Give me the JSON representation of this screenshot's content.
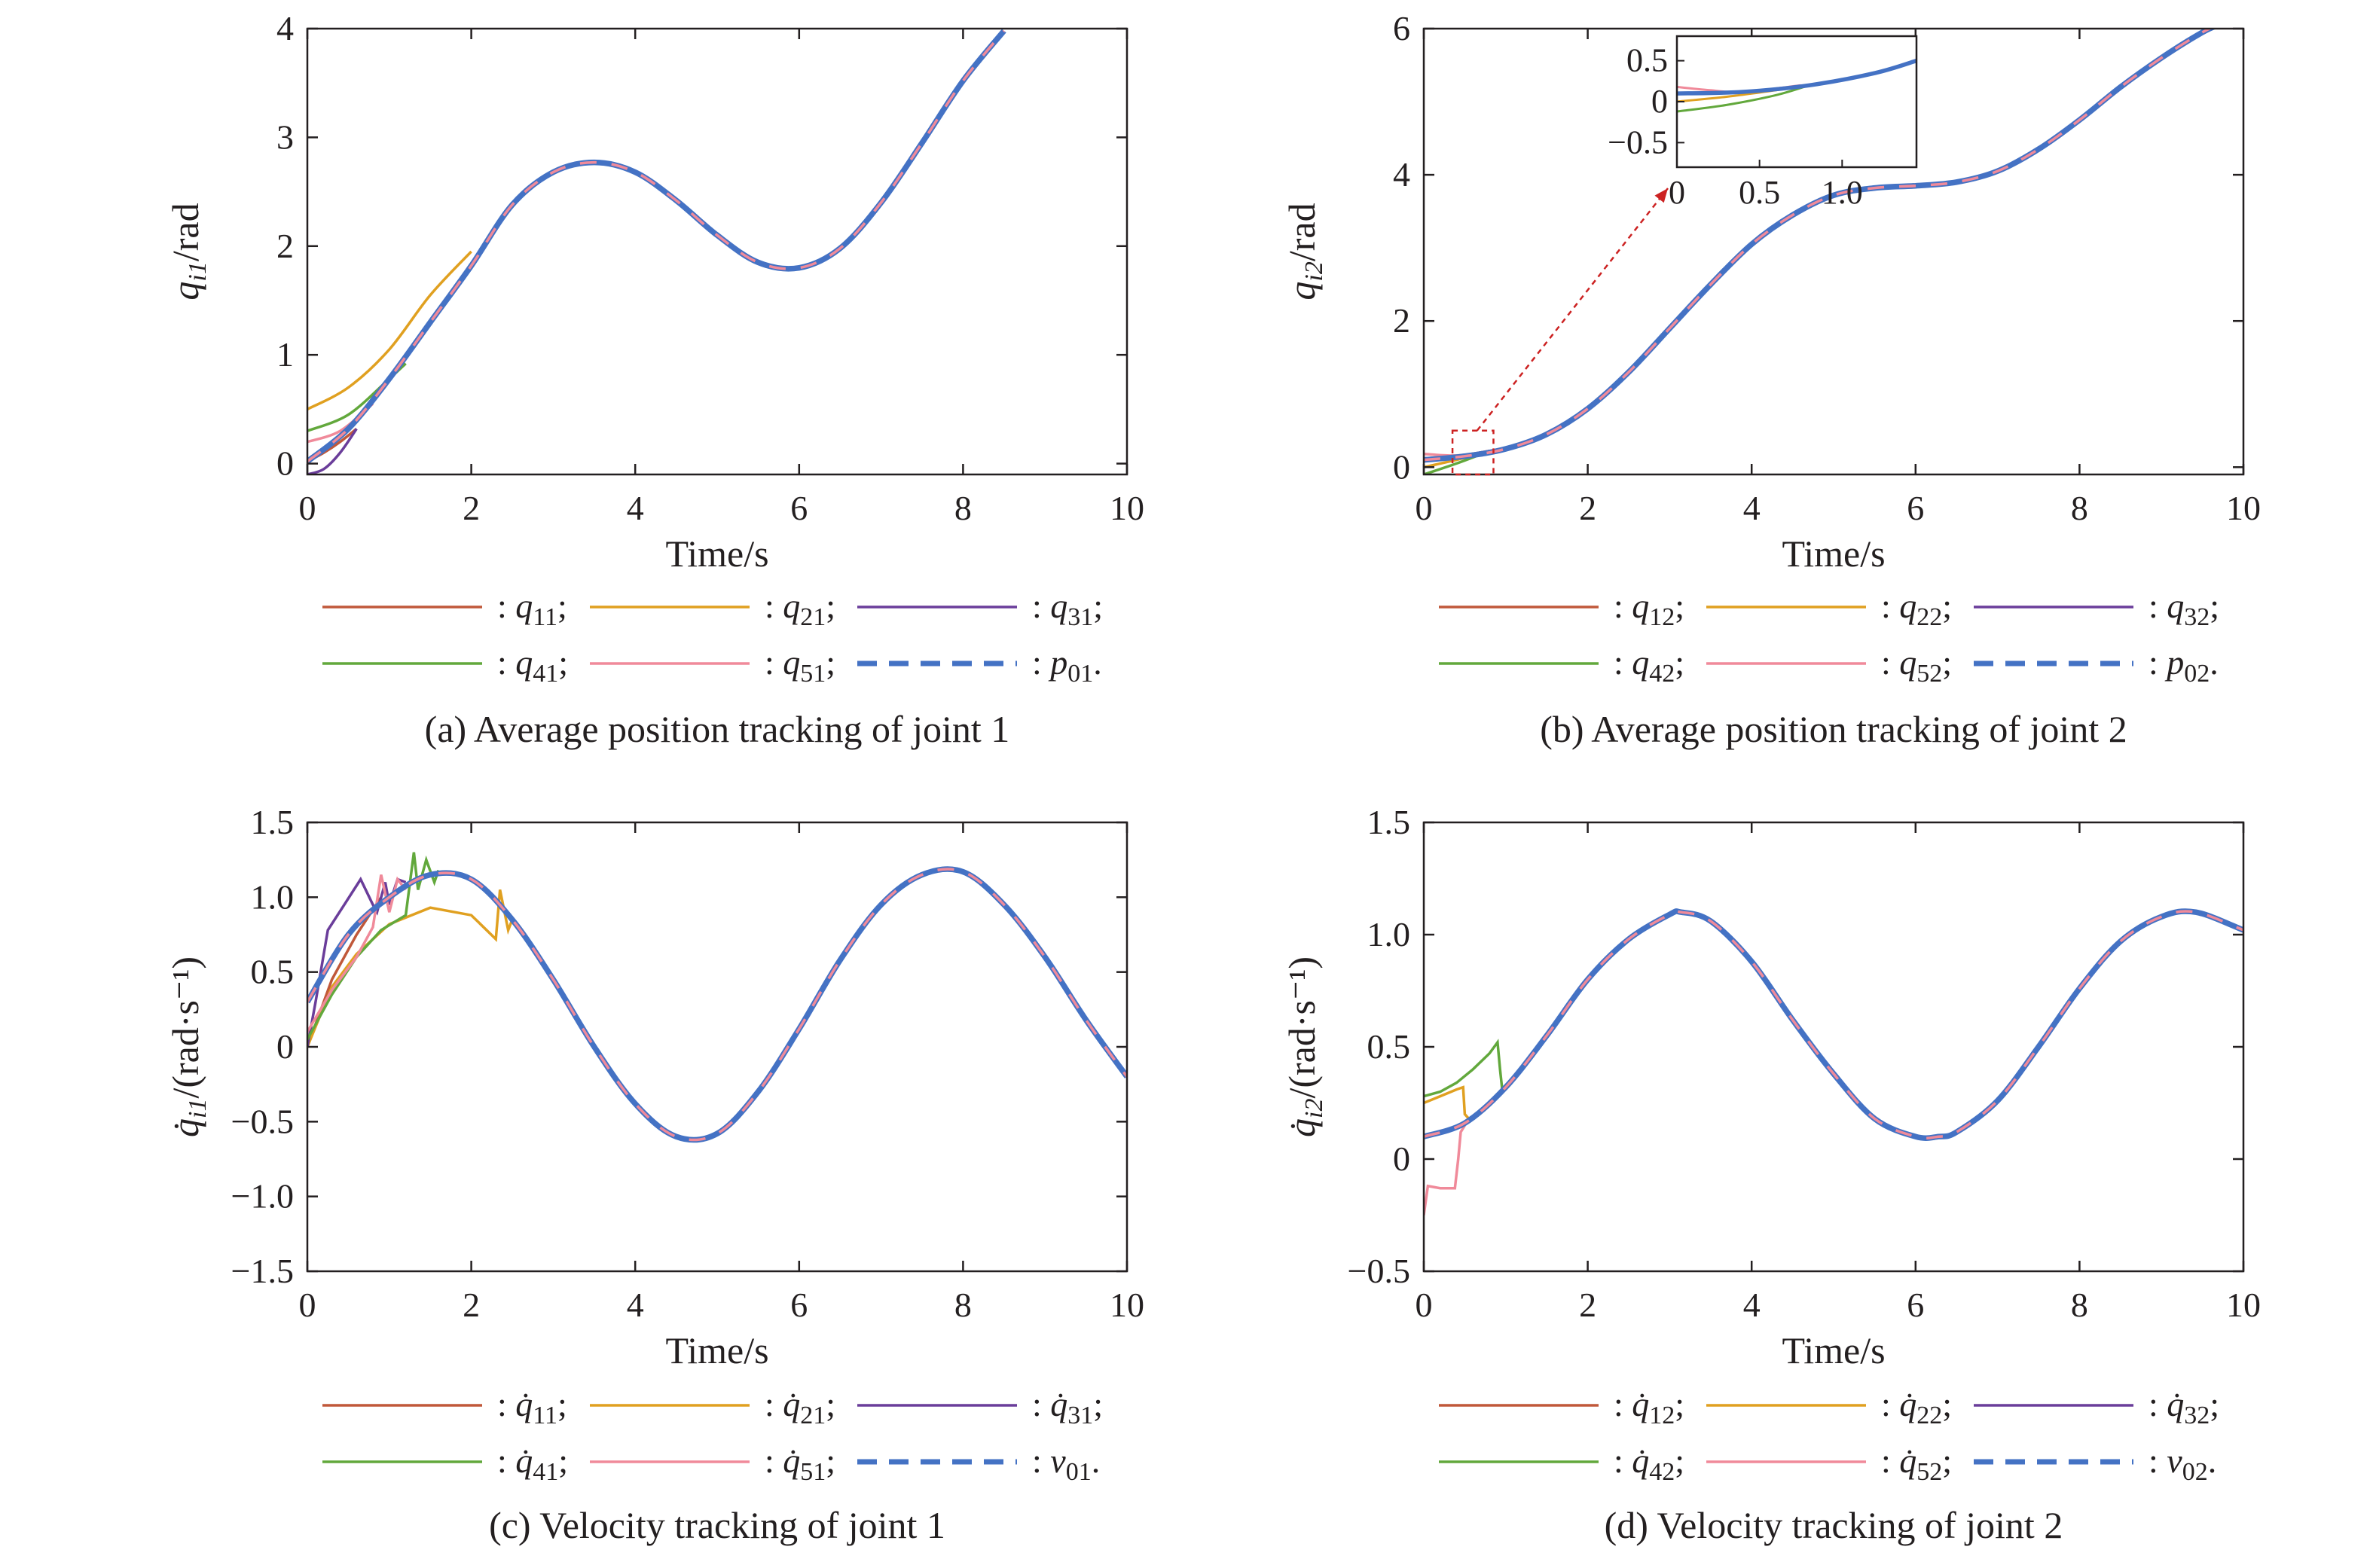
{
  "colors": {
    "q1": "#c0583a",
    "q2": "#e0a020",
    "q3": "#6a3d9a",
    "q4": "#62a83c",
    "q5": "#f08a9a",
    "ref": "#4472c4",
    "zoom": "#cc2222",
    "axis": "#231f20"
  },
  "chart_data": [
    {
      "id": "a",
      "type": "line",
      "caption": "(a) Average position tracking of joint 1",
      "xlabel": "Time/s",
      "ylabel": "q_i1/rad",
      "xlim": [
        0,
        10
      ],
      "ylim": [
        -0.1,
        4
      ],
      "xticks": [
        0,
        2,
        4,
        6,
        8,
        10
      ],
      "yticks": [
        0,
        1,
        2,
        3,
        4
      ],
      "yticklabels": [
        "0",
        "1",
        "2",
        "3",
        "4"
      ],
      "legend": [
        "q11;",
        "q21;",
        "q31;",
        "q41;",
        "q51;",
        "p01."
      ],
      "reference": {
        "name": "p01",
        "x": [
          0,
          0.5,
          1,
          1.5,
          2,
          2.5,
          3,
          3.5,
          4,
          4.5,
          5,
          5.5,
          6,
          6.5,
          7,
          7.5,
          8,
          8.5
        ],
        "y": [
          0.02,
          0.32,
          0.78,
          1.3,
          1.82,
          2.38,
          2.68,
          2.77,
          2.68,
          2.42,
          2.1,
          1.85,
          1.8,
          1.98,
          2.4,
          2.95,
          3.52,
          3.98
        ]
      },
      "series": [
        {
          "name": "q11",
          "color_key": "q1",
          "x": [
            0,
            0.2,
            0.4,
            0.6
          ],
          "y": [
            0.02,
            0.1,
            0.2,
            0.32
          ]
        },
        {
          "name": "q21",
          "color_key": "q2",
          "x": [
            0,
            0.5,
            1,
            1.5,
            2
          ],
          "y": [
            0.5,
            0.7,
            1.05,
            1.55,
            1.95
          ]
        },
        {
          "name": "q31",
          "color_key": "q3",
          "x": [
            0,
            0.2,
            0.4,
            0.6
          ],
          "y": [
            -0.1,
            -0.05,
            0.1,
            0.32
          ]
        },
        {
          "name": "q41",
          "color_key": "q4",
          "x": [
            0,
            0.5,
            1,
            1.2
          ],
          "y": [
            0.3,
            0.45,
            0.78,
            0.92
          ]
        },
        {
          "name": "q51",
          "color_key": "q5",
          "x": [
            0,
            0.4,
            0.8
          ],
          "y": [
            0.2,
            0.3,
            0.55
          ]
        }
      ]
    },
    {
      "id": "b",
      "type": "line",
      "caption": "(b) Average position tracking of joint 2",
      "xlabel": "Time/s",
      "ylabel": "q_i2/rad",
      "xlim": [
        0,
        10
      ],
      "ylim": [
        -0.1,
        6
      ],
      "xticks": [
        0,
        2,
        4,
        6,
        8,
        10
      ],
      "yticks": [
        0,
        2,
        4,
        6
      ],
      "yticklabels": [
        "0",
        "2",
        "4",
        "6"
      ],
      "legend": [
        "q12;",
        "q22;",
        "q32;",
        "q42;",
        "q52;",
        "p02."
      ],
      "reference": {
        "name": "p02",
        "x": [
          0,
          0.5,
          1,
          1.5,
          2,
          2.5,
          3,
          3.5,
          4,
          4.5,
          5,
          5.5,
          6,
          6.5,
          7,
          7.5,
          8,
          8.5,
          9,
          9.5,
          9.7
        ],
        "y": [
          0.1,
          0.15,
          0.25,
          0.45,
          0.8,
          1.3,
          1.9,
          2.5,
          3.05,
          3.45,
          3.72,
          3.82,
          3.85,
          3.9,
          4.05,
          4.35,
          4.75,
          5.2,
          5.6,
          5.95,
          6.05
        ]
      },
      "series": [
        {
          "name": "q12",
          "color_key": "q1",
          "x": [
            0,
            0.4,
            0.8
          ],
          "y": [
            0.1,
            0.15,
            0.22
          ]
        },
        {
          "name": "q22",
          "color_key": "q2",
          "x": [
            0,
            0.4,
            0.8
          ],
          "y": [
            0.0,
            0.1,
            0.22
          ]
        },
        {
          "name": "q32",
          "color_key": "q3",
          "x": [
            0,
            0.4,
            0.8
          ],
          "y": [
            0.12,
            0.15,
            0.22
          ]
        },
        {
          "name": "q42",
          "color_key": "q4",
          "x": [
            0,
            0.4,
            0.8
          ],
          "y": [
            -0.1,
            0.05,
            0.22
          ]
        },
        {
          "name": "q52",
          "color_key": "q5",
          "x": [
            0,
            0.4,
            0.8
          ],
          "y": [
            0.18,
            0.16,
            0.22
          ]
        }
      ],
      "inset": {
        "xlim": [
          0,
          1.45
        ],
        "ylim": [
          -0.8,
          0.8
        ],
        "xticks": [
          0,
          0.5,
          1.0
        ],
        "xticklabels": [
          "0",
          "0.5",
          "1.0"
        ],
        "yticks": [
          0.5,
          0,
          -0.5
        ],
        "yticklabels": [
          "0.5",
          "0",
          "−0.5"
        ],
        "zoom_box": {
          "x": [
            0.35,
            0.85
          ],
          "y": [
            -0.1,
            0.5
          ]
        },
        "reference": {
          "x": [
            0,
            0.4,
            0.8,
            1.2,
            1.45
          ],
          "y": [
            0.1,
            0.12,
            0.2,
            0.35,
            0.5
          ]
        },
        "series": [
          {
            "color_key": "q5",
            "x": [
              0,
              0.2,
              0.4,
              0.75
            ],
            "y": [
              0.18,
              0.14,
              0.12,
              0.2
            ]
          },
          {
            "color_key": "q2",
            "x": [
              0,
              0.3,
              0.6,
              0.8
            ],
            "y": [
              0.0,
              0.06,
              0.14,
              0.2
            ]
          },
          {
            "color_key": "q4",
            "x": [
              0,
              0.3,
              0.6,
              0.8
            ],
            "y": [
              -0.12,
              -0.04,
              0.08,
              0.2
            ]
          }
        ]
      }
    },
    {
      "id": "c",
      "type": "line",
      "caption": "(c) Velocity tracking of joint 1",
      "xlabel": "Time/s",
      "ylabel": "q̇_i1/(rad·s⁻¹)",
      "xlim": [
        0,
        10
      ],
      "ylim": [
        -1.5,
        1.5
      ],
      "xticks": [
        0,
        2,
        4,
        6,
        8,
        10
      ],
      "yticks": [
        -1.5,
        -1.0,
        -0.5,
        0,
        0.5,
        1.0,
        1.5
      ],
      "yticklabels": [
        "−1.5",
        "−1.0",
        "−0.5",
        "0",
        "0.5",
        "1.0",
        "1.5"
      ],
      "legend": [
        "q̇11;",
        "q̇21;",
        "q̇31;",
        "q̇41;",
        "q̇51;",
        "v01."
      ],
      "reference": {
        "name": "v01",
        "x": [
          0,
          0.5,
          1,
          1.5,
          2,
          2.5,
          3,
          3.5,
          4,
          4.5,
          5,
          5.5,
          6,
          6.5,
          7,
          7.5,
          8,
          8.5,
          9,
          9.5,
          10
        ],
        "y": [
          0.3,
          0.75,
          1.0,
          1.15,
          1.12,
          0.85,
          0.45,
          0.0,
          -0.38,
          -0.6,
          -0.58,
          -0.3,
          0.12,
          0.58,
          0.95,
          1.15,
          1.17,
          0.95,
          0.6,
          0.18,
          -0.2
        ]
      },
      "series": [
        {
          "name": "q11",
          "color_key": "q1",
          "x": [
            0,
            0.3,
            0.6,
            0.9
          ],
          "y": [
            0.0,
            0.45,
            0.75,
            1.0
          ]
        },
        {
          "name": "q21",
          "color_key": "q2",
          "x": [
            0,
            0.3,
            0.6,
            1.0,
            1.5,
            2.0,
            2.3,
            2.35,
            2.45,
            2.5
          ],
          "y": [
            0.0,
            0.4,
            0.62,
            0.82,
            0.93,
            0.88,
            0.72,
            1.05,
            0.78,
            0.85
          ]
        },
        {
          "name": "q31",
          "color_key": "q3",
          "x": [
            0,
            0.1,
            0.25,
            0.45,
            0.65,
            0.8,
            0.85,
            0.95,
            1.0,
            1.1,
            1.2
          ],
          "y": [
            0.0,
            0.3,
            0.78,
            0.95,
            1.12,
            0.95,
            0.9,
            1.1,
            0.95,
            1.12,
            1.1
          ]
        },
        {
          "name": "q41",
          "color_key": "q4",
          "x": [
            0,
            0.3,
            0.6,
            0.9,
            1.2,
            1.3,
            1.35,
            1.45,
            1.55,
            1.6
          ],
          "y": [
            0.05,
            0.35,
            0.6,
            0.78,
            0.88,
            1.3,
            1.05,
            1.25,
            1.1,
            1.18
          ]
        },
        {
          "name": "q51",
          "color_key": "q5",
          "x": [
            0,
            0.3,
            0.6,
            0.8,
            0.9,
            1.0,
            1.1,
            1.2
          ],
          "y": [
            0.1,
            0.38,
            0.6,
            0.8,
            1.15,
            0.9,
            1.12,
            1.05
          ]
        }
      ]
    },
    {
      "id": "d",
      "type": "line",
      "caption": "(d) Velocity tracking of joint 2",
      "xlabel": "Time/s",
      "ylabel": "q̇_i2/(rad·s⁻¹)",
      "xlim": [
        0,
        10
      ],
      "ylim": [
        -0.5,
        1.5
      ],
      "xticks": [
        0,
        2,
        4,
        6,
        8,
        10
      ],
      "yticks": [
        -0.5,
        0,
        0.5,
        1.0,
        1.5
      ],
      "yticklabels": [
        "−0.5",
        "0",
        "0.5",
        "1.0",
        "1.5"
      ],
      "legend": [
        "q̇12;",
        "q̇22;",
        "q̇32;",
        "q̇42;",
        "q̇52;",
        "v02."
      ],
      "reference": {
        "name": "v02",
        "x": [
          0,
          0.5,
          1,
          1.5,
          2,
          2.5,
          3,
          3.14,
          3.5,
          4,
          4.5,
          5,
          5.5,
          6,
          6.28,
          6.5,
          7,
          7.5,
          8,
          8.5,
          9,
          9.42,
          10
        ],
        "y": [
          0.1,
          0.16,
          0.32,
          0.55,
          0.8,
          0.98,
          1.09,
          1.1,
          1.06,
          0.88,
          0.62,
          0.38,
          0.18,
          0.1,
          0.1,
          0.12,
          0.26,
          0.5,
          0.76,
          0.97,
          1.08,
          1.1,
          1.02
        ]
      },
      "series": [
        {
          "name": "q22",
          "color_key": "q2",
          "x": [
            0,
            0.2,
            0.4,
            0.48,
            0.5,
            0.55
          ],
          "y": [
            0.25,
            0.28,
            0.31,
            0.32,
            0.2,
            0.18
          ]
        },
        {
          "name": "q42",
          "color_key": "q4",
          "x": [
            0,
            0.2,
            0.4,
            0.6,
            0.8,
            0.9,
            0.93,
            0.96
          ],
          "y": [
            0.28,
            0.3,
            0.34,
            0.4,
            0.47,
            0.52,
            0.4,
            0.3
          ]
        },
        {
          "name": "q52",
          "color_key": "q5",
          "x": [
            0,
            0.05,
            0.2,
            0.38,
            0.42,
            0.45,
            0.5
          ],
          "y": [
            -0.25,
            -0.12,
            -0.13,
            -0.13,
            0.0,
            0.12,
            0.15
          ]
        }
      ]
    }
  ]
}
